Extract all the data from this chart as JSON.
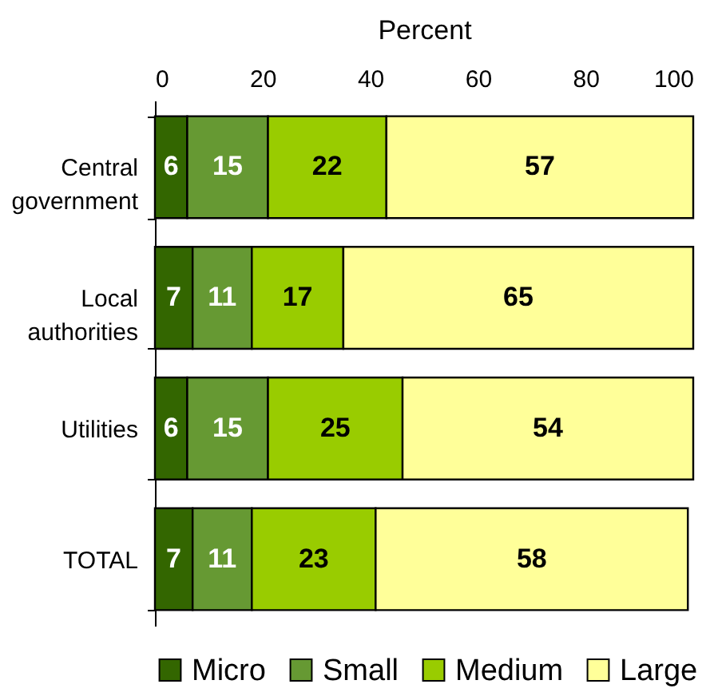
{
  "chart_data": {
    "type": "bar",
    "orientation": "horizontal",
    "stacked": true,
    "xlabel": "Percent",
    "categories": [
      "Central government",
      "Local authorities",
      "Utilities",
      "TOTAL"
    ],
    "series": [
      {
        "name": "Micro",
        "color": "#336600",
        "values": [
          6,
          7,
          6,
          7
        ]
      },
      {
        "name": "Small",
        "color": "#669933",
        "values": [
          15,
          11,
          15,
          11
        ]
      },
      {
        "name": "Medium",
        "color": "#99cc00",
        "values": [
          22,
          17,
          25,
          23
        ]
      },
      {
        "name": "Large",
        "color": "#ffff99",
        "values": [
          57,
          65,
          54,
          58
        ]
      }
    ],
    "xlim": [
      0,
      100
    ],
    "xticks": [
      0,
      20,
      40,
      60,
      80,
      100
    ],
    "data_labels": true,
    "legend": "bottom",
    "grid": false
  }
}
